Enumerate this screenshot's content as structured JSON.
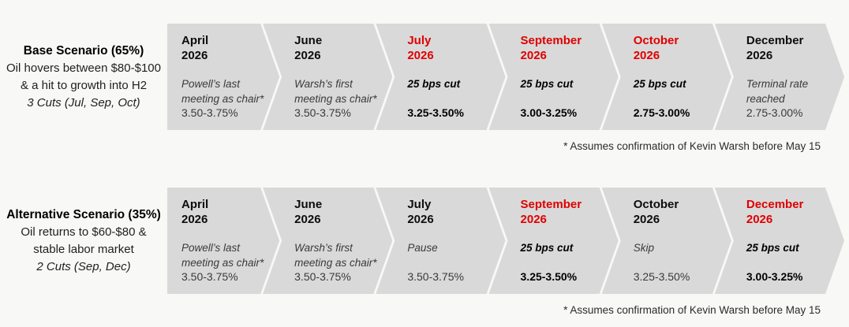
{
  "colors": {
    "accent_red": "#e00000",
    "segment_fill": "#d9d9d9",
    "page_background": "#f8f8f7"
  },
  "scenarios": [
    {
      "title": "Base Scenario (65%)",
      "description_line1": "Oil hovers between $80-$100",
      "description_line2": "& a hit to growth into H2",
      "cuts_summary": "3 Cuts (Jul, Sep, Oct)",
      "footnote": "* Assumes confirmation of Kevin Warsh before May 15",
      "steps": [
        {
          "month": "April",
          "year": "2026",
          "note": "Powell’s last meeting as chair*",
          "rate": "3.50-3.75%",
          "highlight": false
        },
        {
          "month": "June",
          "year": "2026",
          "note": "Warsh’s first meeting as chair*",
          "rate": "3.50-3.75%",
          "highlight": false
        },
        {
          "month": "July",
          "year": "2026",
          "note": "25 bps cut",
          "rate": "3.25-3.50%",
          "highlight": true
        },
        {
          "month": "September",
          "year": "2026",
          "note": "25 bps cut",
          "rate": "3.00-3.25%",
          "highlight": true
        },
        {
          "month": "October",
          "year": "2026",
          "note": "25 bps cut",
          "rate": "2.75-3.00%",
          "highlight": true
        },
        {
          "month": "December",
          "year": "2026",
          "note": "Terminal rate reached",
          "rate": "2.75-3.00%",
          "highlight": false
        }
      ]
    },
    {
      "title": "Alternative Scenario (35%)",
      "description_line1": "Oil returns to $60-$80 &",
      "description_line2": "stable labor market",
      "cuts_summary": "2 Cuts (Sep, Dec)",
      "footnote": "* Assumes confirmation of Kevin Warsh before May 15",
      "steps": [
        {
          "month": "April",
          "year": "2026",
          "note": "Powell’s last meeting as chair*",
          "rate": "3.50-3.75%",
          "highlight": false
        },
        {
          "month": "June",
          "year": "2026",
          "note": "Warsh’s first meeting as chair*",
          "rate": "3.50-3.75%",
          "highlight": false
        },
        {
          "month": "July",
          "year": "2026",
          "note": "Pause",
          "rate": "3.50-3.75%",
          "highlight": false
        },
        {
          "month": "September",
          "year": "2026",
          "note": "25 bps cut",
          "rate": "3.25-3.50%",
          "highlight": true
        },
        {
          "month": "October",
          "year": "2026",
          "note": "Skip",
          "rate": "3.25-3.50%",
          "highlight": false
        },
        {
          "month": "December",
          "year": "2026",
          "note": "25 bps cut",
          "rate": "3.00-3.25%",
          "highlight": true
        }
      ]
    }
  ]
}
